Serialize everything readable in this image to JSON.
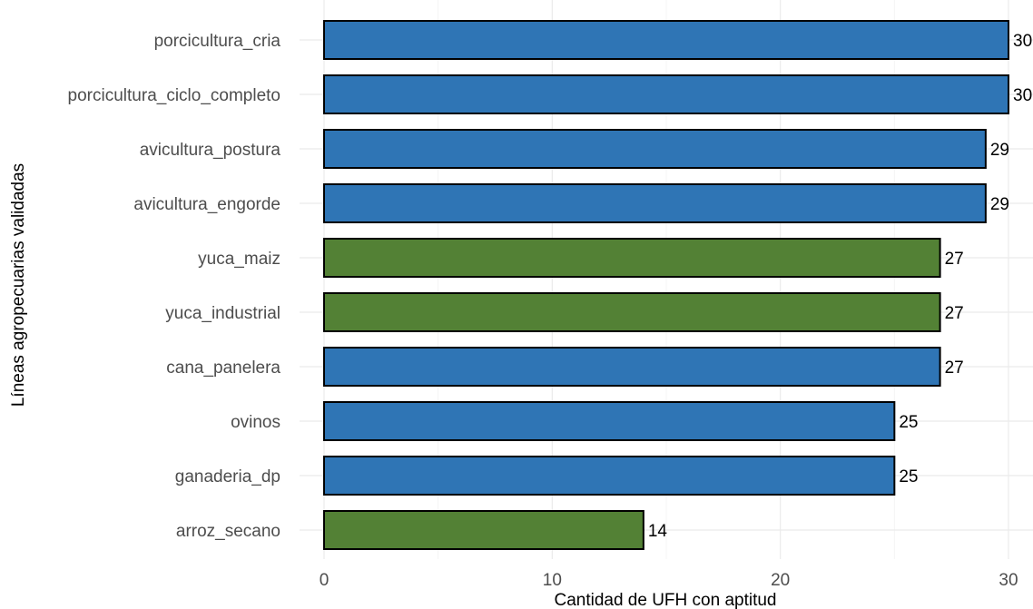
{
  "chart_data": {
    "type": "bar",
    "orientation": "horizontal",
    "xlabel": "Cantidad de UFH con aptitud",
    "ylabel": "Líneas agropecuarias validadas",
    "xlim": [
      0,
      30
    ],
    "x_ticks": [
      "0",
      "10",
      "20",
      "30"
    ],
    "grid": true,
    "legend": "none",
    "categories": [
      "porcicultura_cria",
      "porcicultura_ciclo_completo",
      "avicultura_postura",
      "avicultura_engorde",
      "yuca_maiz",
      "yuca_industrial",
      "cana_panelera",
      "ovinos",
      "ganaderia_dp",
      "arroz_secano"
    ],
    "values": [
      30,
      30,
      29,
      29,
      27,
      27,
      27,
      25,
      25,
      14
    ],
    "bar_colors": [
      "#2f75b5",
      "#2f75b5",
      "#2f75b5",
      "#2f75b5",
      "#538135",
      "#538135",
      "#2f75b5",
      "#2f75b5",
      "#2f75b5",
      "#538135"
    ]
  }
}
